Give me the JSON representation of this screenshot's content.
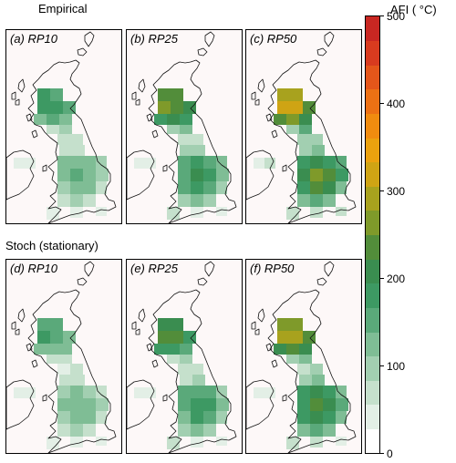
{
  "rows": [
    {
      "title": "Empirical",
      "panels": [
        {
          "label": "(a) RP10",
          "intensity": 0.55
        },
        {
          "label": "(b) RP25",
          "intensity": 0.78
        },
        {
          "label": "(c) RP50",
          "intensity": 1.0
        }
      ]
    },
    {
      "title": "Stoch (stationary)",
      "panels": [
        {
          "label": "(d) RP10",
          "intensity": 0.5
        },
        {
          "label": "(e) RP25",
          "intensity": 0.72
        },
        {
          "label": "(f) RP50",
          "intensity": 0.9
        }
      ]
    }
  ],
  "colorbar": {
    "title": "AFI ( °C)",
    "ticks": [
      "500",
      "400",
      "300",
      "200",
      "100",
      "0"
    ],
    "min": 0,
    "max": 500,
    "colors": [
      "#ffffff",
      "#e3efe6",
      "#c5e0cc",
      "#a2cfb1",
      "#7fbd95",
      "#5aa97a",
      "#3d9963",
      "#3a8d50",
      "#528d3a",
      "#7f9a2a",
      "#a8a21e",
      "#cfa414",
      "#eba20e",
      "#f08c0f",
      "#ec7114",
      "#e4561a",
      "#d83b1f",
      "#c92722"
    ]
  }
}
